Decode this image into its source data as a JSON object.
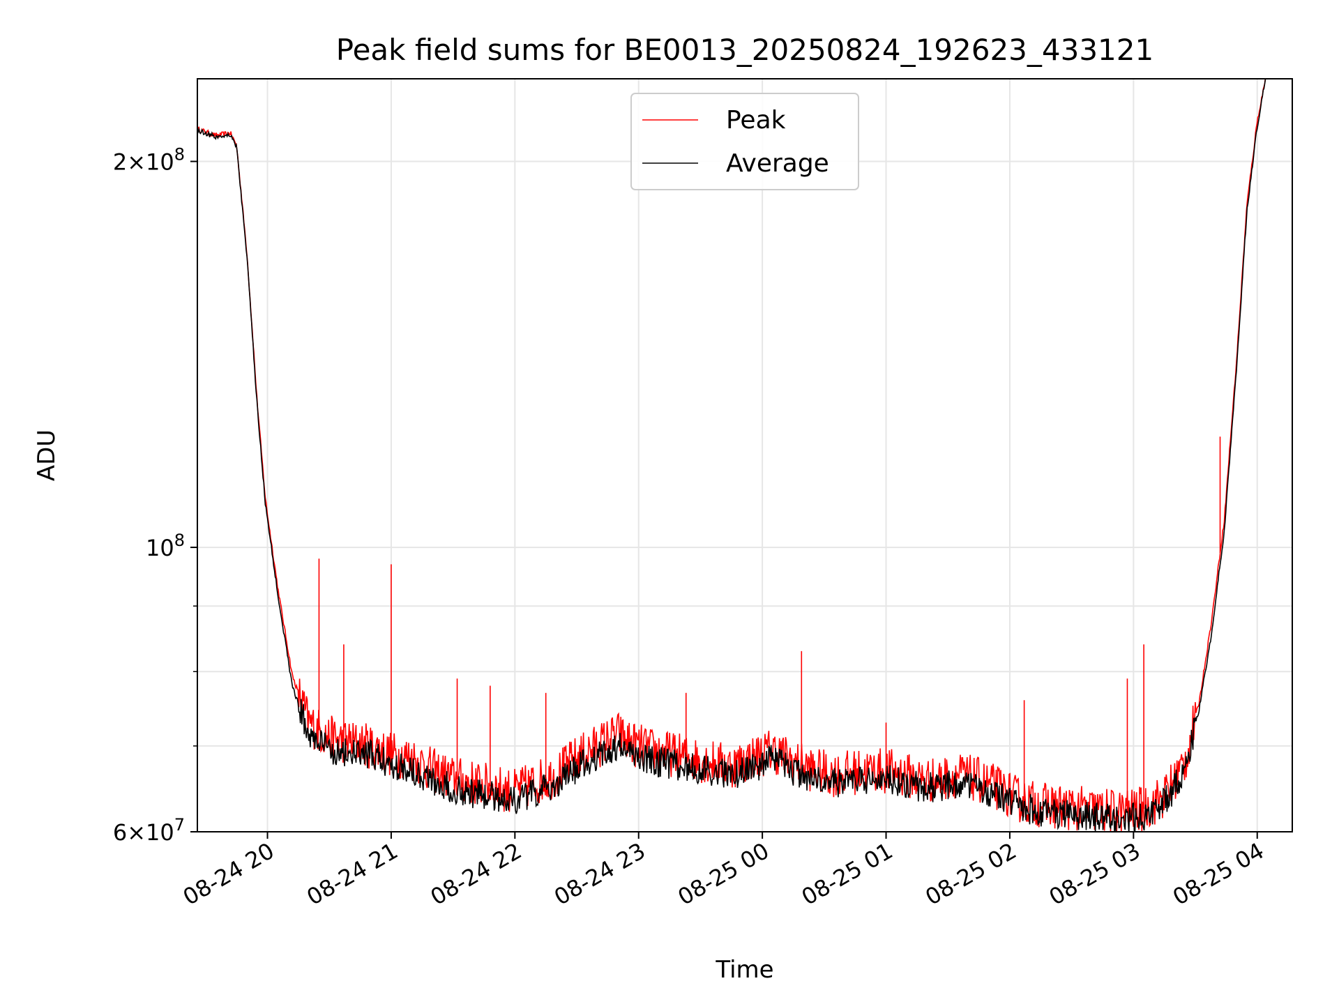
{
  "chart_data": {
    "type": "line",
    "title": "Peak field sums for BE0013_20250824_192623_433121",
    "xlabel": "Time",
    "ylabel": "ADU",
    "yscale": "log",
    "grid": true,
    "legend_position": "top-center",
    "xlim": [
      "2025-08-24 19:26",
      "2025-08-25 04:17"
    ],
    "ylim": [
      60000000,
      232000000
    ],
    "x_ticks": [
      "08-24 20",
      "08-24 21",
      "08-24 22",
      "08-24 23",
      "08-25 00",
      "08-25 01",
      "08-25 02",
      "08-25 03",
      "08-25 04"
    ],
    "y_ticks": [
      {
        "value": 60000000,
        "mantissa": "6",
        "base": "10",
        "exp": "7"
      },
      {
        "value": 100000000,
        "mantissa": "",
        "base": "10",
        "exp": "8"
      },
      {
        "value": 200000000,
        "mantissa": "2",
        "base": "10",
        "exp": "8"
      }
    ],
    "y_minor_gridlines": [
      70000000,
      80000000,
      90000000
    ],
    "series": [
      {
        "name": "Peak",
        "color": "#ff0000",
        "x": [
          "2025-08-24 19:26",
          "2025-08-24 19:35",
          "2025-08-24 19:42",
          "2025-08-24 19:45",
          "2025-08-24 19:50",
          "2025-08-24 19:55",
          "2025-08-24 19:59",
          "2025-08-24 20:05",
          "2025-08-24 20:12",
          "2025-08-24 20:20",
          "2025-08-24 20:30",
          "2025-08-24 20:40",
          "2025-08-24 20:50",
          "2025-08-24 21:00",
          "2025-08-24 21:10",
          "2025-08-24 21:20",
          "2025-08-24 21:30",
          "2025-08-24 21:40",
          "2025-08-24 21:50",
          "2025-08-24 22:00",
          "2025-08-24 22:10",
          "2025-08-24 22:20",
          "2025-08-24 22:30",
          "2025-08-24 22:40",
          "2025-08-24 22:50",
          "2025-08-24 22:55",
          "2025-08-24 23:05",
          "2025-08-24 23:15",
          "2025-08-24 23:25",
          "2025-08-24 23:35",
          "2025-08-24 23:45",
          "2025-08-24 23:55",
          "2025-08-25 00:05",
          "2025-08-25 00:15",
          "2025-08-25 00:25",
          "2025-08-25 00:35",
          "2025-08-25 00:45",
          "2025-08-25 00:55",
          "2025-08-25 01:05",
          "2025-08-25 01:15",
          "2025-08-25 01:25",
          "2025-08-25 01:35",
          "2025-08-25 01:45",
          "2025-08-25 01:55",
          "2025-08-25 02:05",
          "2025-08-25 02:15",
          "2025-08-25 02:25",
          "2025-08-25 02:35",
          "2025-08-25 02:45",
          "2025-08-25 02:55",
          "2025-08-25 03:05",
          "2025-08-25 03:15",
          "2025-08-25 03:25",
          "2025-08-25 03:32",
          "2025-08-25 03:38",
          "2025-08-25 03:44",
          "2025-08-25 03:50",
          "2025-08-25 03:55",
          "2025-08-25 04:00",
          "2025-08-25 04:04"
        ],
        "y": [
          212000000,
          209500000,
          210500000,
          206000000,
          170000000,
          130000000,
          109000000,
          93000000,
          79500000,
          73000000,
          71000000,
          70500000,
          70000000,
          69000000,
          68500000,
          67000000,
          66000000,
          65500000,
          65000000,
          64500000,
          65500000,
          66500000,
          68500000,
          70000000,
          71500000,
          70500000,
          69500000,
          69000000,
          68500000,
          68000000,
          67500000,
          68500000,
          69500000,
          68000000,
          67000000,
          66500000,
          66800000,
          67000000,
          66800000,
          66000000,
          65800000,
          66500000,
          65800000,
          64800000,
          63500000,
          63000000,
          62700000,
          62500000,
          62300000,
          62200000,
          62500000,
          64000000,
          68000000,
          76000000,
          88000000,
          105000000,
          140000000,
          185000000,
          215000000,
          232000000
        ]
      },
      {
        "name": "Average",
        "color": "#000000",
        "x": [
          "2025-08-24 19:26",
          "2025-08-24 19:35",
          "2025-08-24 19:42",
          "2025-08-24 19:45",
          "2025-08-24 19:50",
          "2025-08-24 19:55",
          "2025-08-24 19:59",
          "2025-08-24 20:05",
          "2025-08-24 20:12",
          "2025-08-24 20:20",
          "2025-08-24 20:30",
          "2025-08-24 20:40",
          "2025-08-24 20:50",
          "2025-08-24 21:00",
          "2025-08-24 21:10",
          "2025-08-24 21:20",
          "2025-08-24 21:30",
          "2025-08-24 21:40",
          "2025-08-24 21:50",
          "2025-08-24 22:00",
          "2025-08-24 22:10",
          "2025-08-24 22:20",
          "2025-08-24 22:30",
          "2025-08-24 22:40",
          "2025-08-24 22:50",
          "2025-08-24 22:55",
          "2025-08-24 23:05",
          "2025-08-24 23:15",
          "2025-08-24 23:25",
          "2025-08-24 23:35",
          "2025-08-24 23:45",
          "2025-08-24 23:55",
          "2025-08-25 00:05",
          "2025-08-25 00:15",
          "2025-08-25 00:25",
          "2025-08-25 00:35",
          "2025-08-25 00:45",
          "2025-08-25 00:55",
          "2025-08-25 01:05",
          "2025-08-25 01:15",
          "2025-08-25 01:25",
          "2025-08-25 01:35",
          "2025-08-25 01:45",
          "2025-08-25 01:55",
          "2025-08-25 02:05",
          "2025-08-25 02:15",
          "2025-08-25 02:25",
          "2025-08-25 02:35",
          "2025-08-25 02:45",
          "2025-08-25 02:55",
          "2025-08-25 03:05",
          "2025-08-25 03:15",
          "2025-08-25 03:25",
          "2025-08-25 03:32",
          "2025-08-25 03:38",
          "2025-08-25 03:44",
          "2025-08-25 03:50",
          "2025-08-25 03:55",
          "2025-08-25 04:00",
          "2025-08-25 04:04"
        ],
        "y": [
          211500000,
          209000000,
          210000000,
          205500000,
          169000000,
          129000000,
          108000000,
          92000000,
          78000000,
          71500000,
          69500000,
          69000000,
          68800000,
          67800000,
          67200000,
          65800000,
          64800000,
          64300000,
          64000000,
          63500000,
          64300000,
          65300000,
          67200000,
          68700000,
          70000000,
          69200000,
          68300000,
          67800000,
          67300000,
          66900000,
          66400000,
          67300000,
          68300000,
          66900000,
          66000000,
          65500000,
          65800000,
          66000000,
          65800000,
          65100000,
          64900000,
          65600000,
          64900000,
          63900000,
          62700000,
          62200000,
          61900000,
          61700000,
          61500000,
          61400000,
          61800000,
          63200000,
          67000000,
          75000000,
          86000000,
          103000000,
          138000000,
          183000000,
          213000000,
          232000000
        ]
      }
    ],
    "spikes": [
      {
        "series": "Peak",
        "x": "2025-08-24 21:00",
        "y": 97000000
      },
      {
        "series": "Peak",
        "x": "2025-08-25 00:19",
        "y": 83000000
      },
      {
        "series": "Peak",
        "x": "2025-08-25 03:05",
        "y": 84000000
      },
      {
        "series": "Peak",
        "x": "2025-08-24 21:32",
        "y": 79000000
      },
      {
        "series": "Peak",
        "x": "2025-08-24 21:48",
        "y": 78000000
      },
      {
        "series": "Peak",
        "x": "2025-08-24 22:15",
        "y": 77000000
      },
      {
        "series": "Peak",
        "x": "2025-08-24 23:23",
        "y": 77000000
      },
      {
        "series": "Peak",
        "x": "2025-08-25 01:00",
        "y": 73000000
      },
      {
        "series": "Peak",
        "x": "2025-08-25 02:07",
        "y": 76000000
      },
      {
        "series": "Peak",
        "x": "2025-08-25 02:57",
        "y": 79000000
      },
      {
        "series": "Peak",
        "x": "2025-08-25 03:42",
        "y": 122000000
      },
      {
        "series": "Peak",
        "x": "2025-08-24 20:25",
        "y": 98000000
      },
      {
        "series": "Peak",
        "x": "2025-08-24 20:37",
        "y": 84000000
      }
    ]
  },
  "legend": [
    {
      "label": "Peak",
      "color": "#ff0000"
    },
    {
      "label": "Average",
      "color": "#000000"
    }
  ]
}
